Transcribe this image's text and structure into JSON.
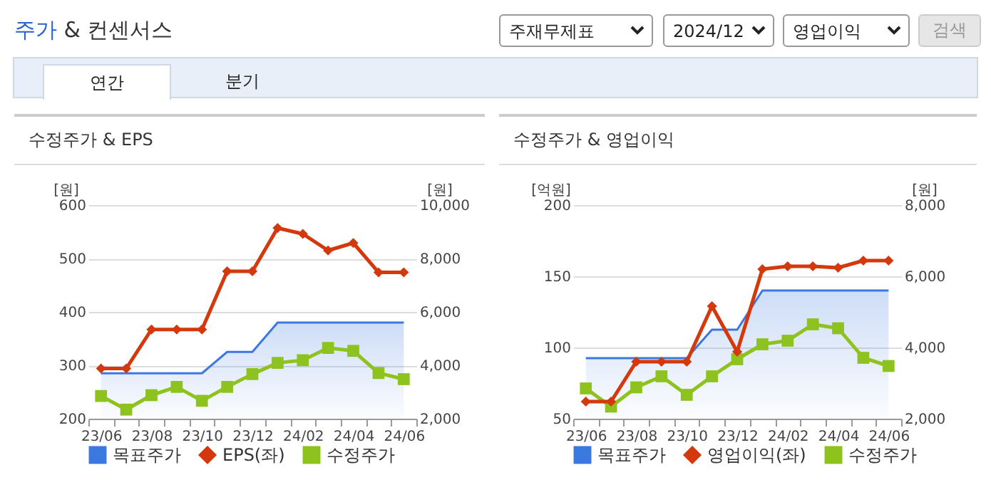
{
  "chart_data": [
    {
      "type": "other",
      "title": "주가 & 컨센서스",
      "annotations": [
        "주재무제표",
        "2024/12",
        "영업이익",
        "검색",
        "연간",
        "분기"
      ]
    },
    {
      "type": "line",
      "title": "수정주가 & EPS",
      "ylabel": "[원]",
      "y2label": "[원]",
      "categories": [
        "23/06",
        null,
        "23/08",
        null,
        "23/10",
        null,
        "23/12",
        null,
        "24/02",
        null,
        "24/04",
        null,
        "24/06"
      ],
      "ylim": [
        200,
        600
      ],
      "yticks": [
        200,
        300,
        400,
        500,
        600
      ],
      "y2lim": [
        2000,
        10000
      ],
      "y2ticks": [
        {
          "value": 2000,
          "label": "2,000"
        },
        {
          "value": 4000,
          "label": "4,000"
        },
        {
          "value": 6000,
          "label": "6,000"
        },
        {
          "value": 8000,
          "label": "8,000"
        },
        {
          "value": 10000,
          "label": "10,000"
        }
      ],
      "grid": "y",
      "legend": "bottom",
      "series": [
        {
          "name": "목표주가",
          "type": "area",
          "color": "#3b78e0",
          "axis": "y2",
          "values": [
            3700,
            3700,
            3700,
            3700,
            3700,
            4500,
            4500,
            5600,
            5600,
            5600,
            5600,
            5600,
            5600
          ]
        },
        {
          "name": "EPS(좌)",
          "type": "line",
          "color": "#d4380d",
          "marker": "diamond",
          "values": [
            294,
            294,
            367,
            367,
            367,
            476,
            476,
            557,
            546,
            515,
            529,
            474,
            474
          ]
        },
        {
          "name": "수정주가",
          "type": "line",
          "color": "#8dc21f",
          "axis": "y2",
          "marker": "square",
          "values": [
            2850,
            2340,
            2880,
            3190,
            2670,
            3190,
            3670,
            4090,
            4190,
            4650,
            4540,
            3710,
            3480
          ]
        }
      ]
    },
    {
      "type": "line",
      "title": "수정주가 & 영업이익",
      "ylabel": "[억원]",
      "y2label": "[원]",
      "categories": [
        "23/06",
        null,
        "23/08",
        null,
        "23/10",
        null,
        "23/12",
        null,
        "24/02",
        null,
        "24/04",
        null,
        "24/06"
      ],
      "ylim": [
        50,
        200
      ],
      "yticks": [
        50,
        100,
        150,
        200
      ],
      "y2lim": [
        2000,
        8000
      ],
      "y2ticks": [
        {
          "value": 2000,
          "label": "2,000"
        },
        {
          "value": 4000,
          "label": "4,000"
        },
        {
          "value": 6000,
          "label": "6,000"
        },
        {
          "value": 8000,
          "label": "8,000"
        }
      ],
      "grid": "y",
      "legend": "bottom",
      "series": [
        {
          "name": "목표주가",
          "type": "area",
          "color": "#3b78e0",
          "axis": "y2",
          "values": [
            3700,
            3700,
            3700,
            3700,
            3700,
            4500,
            4500,
            5600,
            5600,
            5600,
            5600,
            5600,
            5600
          ]
        },
        {
          "name": "영업이익(좌)",
          "type": "line",
          "color": "#d4380d",
          "marker": "diamond",
          "values": [
            62,
            62,
            90,
            90,
            90,
            129,
            97,
            155,
            157,
            157,
            156,
            161,
            161
          ]
        },
        {
          "name": "수정주가",
          "type": "line",
          "color": "#8dc21f",
          "axis": "y2",
          "marker": "square",
          "values": [
            2850,
            2340,
            2880,
            3190,
            2670,
            3190,
            3670,
            4090,
            4190,
            4650,
            4540,
            3710,
            3480
          ]
        }
      ]
    }
  ]
}
